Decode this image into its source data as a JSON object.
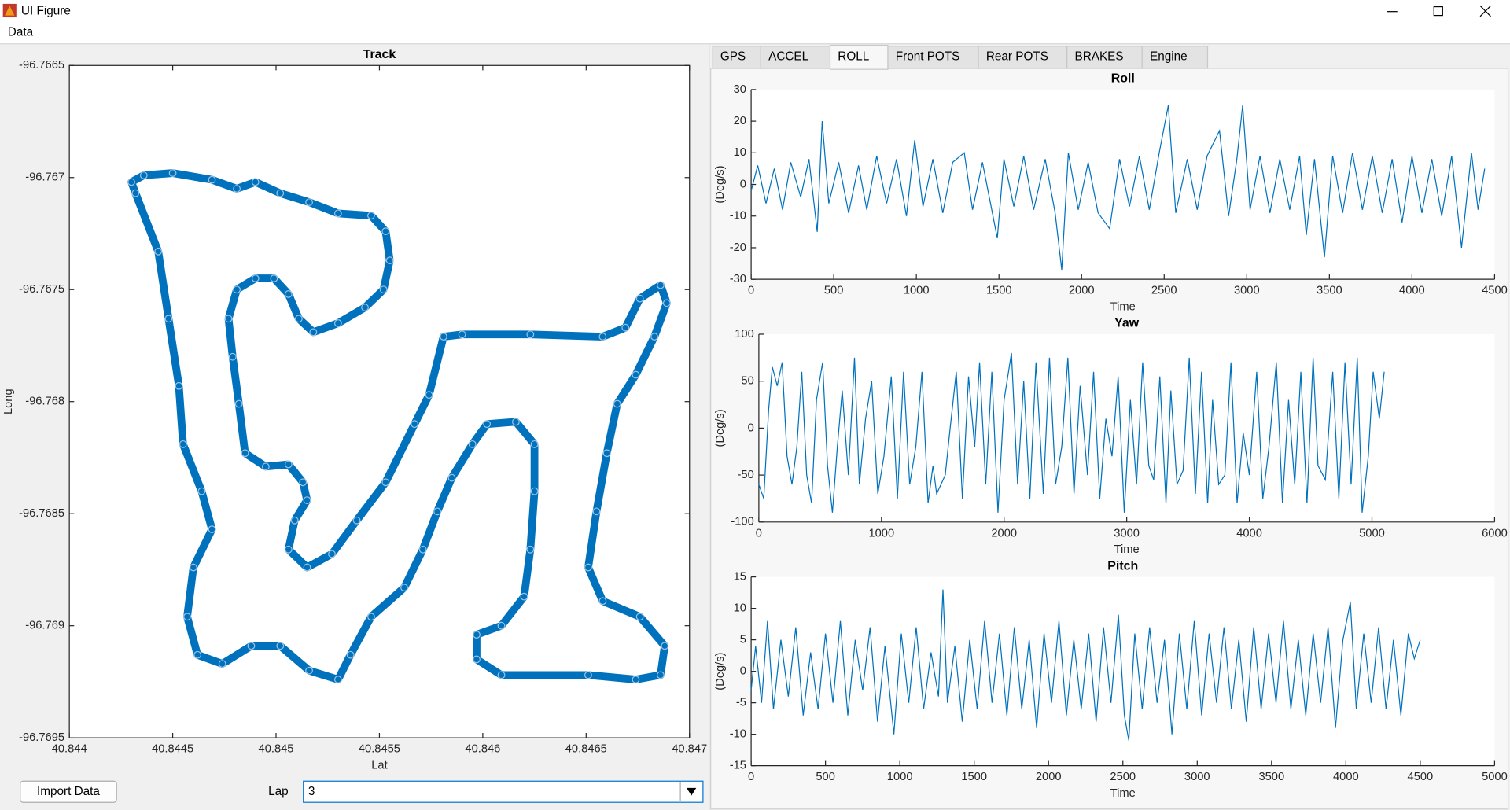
{
  "window": {
    "title": "UI Figure"
  },
  "menu": [
    "Data"
  ],
  "tabs": [
    "GPS",
    "ACCEL",
    "ROLL",
    "Front POTS",
    "Rear POTS",
    "BRAKES",
    "Engine"
  ],
  "active_tab": 2,
  "controls": {
    "button": "Import Data",
    "lap_label": "Lap",
    "lap_value": "3"
  },
  "chart_data": [
    {
      "type": "scatter",
      "title": "Track",
      "x_label": "Lat",
      "y_label": "Long",
      "color": "#0072BD",
      "xlim": [
        40.844,
        40.847
      ],
      "ylim": [
        -96.7695,
        -96.7665
      ],
      "xticks": [
        40.844,
        40.8445,
        40.845,
        40.8455,
        40.846,
        40.8465,
        40.847
      ],
      "yticks": [
        -96.7695,
        -96.769,
        -96.7685,
        -96.768,
        -96.7675,
        -96.767,
        -96.7665
      ],
      "x": [
        40.8443,
        40.84436,
        40.8445,
        40.84469,
        40.84481,
        40.8449,
        40.84502,
        40.84516,
        40.8453,
        40.84546,
        40.84553,
        40.84555,
        40.84552,
        40.84543,
        40.8453,
        40.84518,
        40.84511,
        40.84506,
        40.84499,
        40.8449,
        40.84481,
        40.84477,
        40.84479,
        40.84482,
        40.84485,
        40.84495,
        40.84506,
        40.84513,
        40.84515,
        40.84509,
        40.84506,
        40.84515,
        40.84527,
        40.84539,
        40.84553,
        40.84567,
        40.84574,
        40.84581,
        40.8459,
        40.84623,
        40.84658,
        40.84669,
        40.84676,
        40.84686,
        40.84689,
        40.84683,
        40.84674,
        40.84665,
        40.8466,
        40.84655,
        40.84651,
        40.84658,
        40.84676,
        40.84688,
        40.84686,
        40.84674,
        40.84651,
        40.84609,
        40.84597,
        40.84597,
        40.84609,
        40.8462,
        40.84623,
        40.84625,
        40.84625,
        40.84616,
        40.84602,
        40.84595,
        40.84585,
        40.84578,
        40.84571,
        40.84562,
        40.84546,
        40.84536,
        40.8453,
        40.84516,
        40.84502,
        40.84488,
        40.84474,
        40.84462,
        40.84457,
        40.8446,
        40.84469,
        40.84464,
        40.84455,
        40.84453,
        40.84448,
        40.84443,
        40.84432
      ],
      "values": [
        -96.76702,
        -96.76699,
        -96.76698,
        -96.76701,
        -96.76705,
        -96.76702,
        -96.76707,
        -96.76711,
        -96.76716,
        -96.76717,
        -96.76724,
        -96.76737,
        -96.7675,
        -96.76758,
        -96.76765,
        -96.76769,
        -96.76763,
        -96.76752,
        -96.76745,
        -96.76745,
        -96.7675,
        -96.76763,
        -96.7678,
        -96.76801,
        -96.76823,
        -96.76829,
        -96.76828,
        -96.76836,
        -96.76844,
        -96.76853,
        -96.76866,
        -96.76874,
        -96.76868,
        -96.76853,
        -96.76836,
        -96.7681,
        -96.76797,
        -96.76771,
        -96.7677,
        -96.7677,
        -96.76771,
        -96.76767,
        -96.76754,
        -96.76748,
        -96.76756,
        -96.76771,
        -96.76788,
        -96.76801,
        -96.76823,
        -96.76849,
        -96.76874,
        -96.76889,
        -96.76896,
        -96.76909,
        -96.76922,
        -96.76924,
        -96.76922,
        -96.76922,
        -96.76915,
        -96.76904,
        -96.769,
        -96.76887,
        -96.76866,
        -96.7684,
        -96.76819,
        -96.76809,
        -96.7681,
        -96.76819,
        -96.76834,
        -96.76849,
        -96.76866,
        -96.76883,
        -96.76896,
        -96.76913,
        -96.76924,
        -96.7692,
        -96.76909,
        -96.76909,
        -96.76917,
        -96.76913,
        -96.76896,
        -96.76874,
        -96.76857,
        -96.7684,
        -96.76819,
        -96.76793,
        -96.76763,
        -96.76733,
        -96.76707
      ]
    },
    {
      "type": "line",
      "title": "Roll",
      "x_label": "Time",
      "y_label": "(Deg/s)",
      "color": "#0072BD",
      "xlim": [
        0,
        4500
      ],
      "ylim": [
        -30,
        30
      ],
      "xticks": [
        0,
        500,
        1000,
        1500,
        2000,
        2500,
        3000,
        3500,
        4000,
        4500
      ],
      "yticks": [
        -30,
        -20,
        -10,
        0,
        10,
        20,
        30
      ],
      "x": [
        0,
        40,
        90,
        140,
        190,
        240,
        300,
        350,
        400,
        430,
        470,
        530,
        590,
        650,
        700,
        760,
        820,
        880,
        940,
        990,
        1040,
        1100,
        1160,
        1220,
        1290,
        1340,
        1400,
        1460,
        1490,
        1530,
        1590,
        1650,
        1710,
        1780,
        1840,
        1880,
        1920,
        1980,
        2040,
        2100,
        2170,
        2230,
        2290,
        2350,
        2410,
        2470,
        2525,
        2570,
        2640,
        2700,
        2760,
        2835,
        2890,
        2940,
        2975,
        3020,
        3080,
        3140,
        3200,
        3260,
        3320,
        3360,
        3410,
        3470,
        3520,
        3580,
        3640,
        3700,
        3760,
        3820,
        3880,
        3940,
        4000,
        4060,
        4120,
        4180,
        4240,
        4300,
        4360,
        4400,
        4440
      ],
      "values": [
        -2,
        6,
        -6,
        5,
        -8,
        7,
        -4,
        8,
        -15,
        20,
        -6,
        7,
        -9,
        6,
        -8,
        9,
        -6,
        8,
        -10,
        14,
        -7,
        8,
        -9,
        7,
        10,
        -8,
        7,
        -9,
        -17,
        8,
        -7,
        9,
        -8,
        8,
        -9,
        -27,
        10,
        -8,
        7,
        -9,
        -14,
        8,
        -7,
        9,
        -8,
        10,
        25,
        -9,
        8,
        -8,
        9,
        17,
        -10,
        8,
        25,
        -8,
        9,
        -9,
        8,
        -8,
        9,
        -16,
        8,
        -23,
        9,
        -9,
        10,
        -8,
        9,
        -9,
        8,
        -12,
        9,
        -9,
        8,
        -10,
        9,
        -20,
        10,
        -8,
        5
      ]
    },
    {
      "type": "line",
      "title": "Yaw",
      "x_label": "Time",
      "y_label": "(Deg/s)",
      "color": "#0072BD",
      "xlim": [
        0,
        6000
      ],
      "ylim": [
        -100,
        100
      ],
      "xticks": [
        0,
        1000,
        2000,
        3000,
        4000,
        5000,
        6000
      ],
      "yticks": [
        -100,
        -50,
        0,
        50,
        100
      ],
      "x": [
        0,
        40,
        80,
        110,
        150,
        190,
        230,
        270,
        310,
        350,
        390,
        430,
        470,
        520,
        560,
        600,
        640,
        680,
        730,
        780,
        820,
        870,
        920,
        970,
        1020,
        1080,
        1130,
        1180,
        1230,
        1280,
        1330,
        1380,
        1420,
        1450,
        1520,
        1560,
        1610,
        1660,
        1710,
        1760,
        1800,
        1850,
        1900,
        1950,
        2000,
        2060,
        2110,
        2160,
        2210,
        2260,
        2320,
        2370,
        2420,
        2470,
        2520,
        2570,
        2620,
        2680,
        2730,
        2780,
        2830,
        2880,
        2930,
        2980,
        3030,
        3080,
        3130,
        3180,
        3220,
        3270,
        3320,
        3360,
        3410,
        3460,
        3510,
        3560,
        3610,
        3660,
        3700,
        3750,
        3800,
        3850,
        3900,
        3950,
        4000,
        4060,
        4110,
        4160,
        4220,
        4270,
        4320,
        4370,
        4420,
        4470,
        4520,
        4560,
        4620,
        4680,
        4730,
        4780,
        4830,
        4880,
        4920,
        4970,
        5010,
        5060,
        5100
      ],
      "values": [
        -60,
        -75,
        20,
        65,
        45,
        70,
        -30,
        -60,
        -20,
        60,
        -50,
        -80,
        30,
        70,
        -40,
        -90,
        -20,
        40,
        -50,
        75,
        -60,
        10,
        50,
        -70,
        -30,
        55,
        -75,
        60,
        -60,
        -20,
        60,
        -80,
        -40,
        -70,
        -50,
        0,
        60,
        -75,
        55,
        -20,
        70,
        -60,
        60,
        -90,
        30,
        80,
        -60,
        50,
        -75,
        70,
        -70,
        75,
        -60,
        -20,
        75,
        -70,
        45,
        -50,
        60,
        -75,
        10,
        -30,
        55,
        -90,
        30,
        -60,
        70,
        -40,
        -55,
        55,
        -80,
        40,
        -60,
        -45,
        75,
        -70,
        60,
        -80,
        30,
        -60,
        -50,
        70,
        -80,
        -5,
        -50,
        60,
        -75,
        -20,
        70,
        -80,
        30,
        -60,
        60,
        -80,
        75,
        -40,
        -55,
        60,
        -75,
        70,
        -60,
        75,
        -90,
        -30,
        60,
        10,
        60
      ]
    },
    {
      "type": "line",
      "title": "Pitch",
      "x_label": "Time",
      "y_label": "(Deg/s)",
      "color": "#0072BD",
      "xlim": [
        0,
        5000
      ],
      "ylim": [
        -15,
        15
      ],
      "xticks": [
        0,
        500,
        1000,
        1500,
        2000,
        2500,
        3000,
        3500,
        4000,
        4500,
        5000
      ],
      "yticks": [
        -15,
        -10,
        -5,
        0,
        5,
        10,
        15
      ],
      "x": [
        0,
        30,
        70,
        110,
        150,
        200,
        250,
        300,
        350,
        400,
        450,
        500,
        550,
        600,
        650,
        700,
        750,
        800,
        850,
        900,
        960,
        1010,
        1060,
        1110,
        1160,
        1210,
        1260,
        1290,
        1320,
        1370,
        1420,
        1470,
        1520,
        1570,
        1620,
        1670,
        1720,
        1770,
        1820,
        1870,
        1920,
        1970,
        2020,
        2070,
        2120,
        2170,
        2220,
        2270,
        2320,
        2370,
        2420,
        2470,
        2510,
        2540,
        2580,
        2630,
        2680,
        2730,
        2780,
        2830,
        2880,
        2930,
        2980,
        3030,
        3080,
        3130,
        3180,
        3230,
        3280,
        3330,
        3380,
        3430,
        3480,
        3530,
        3580,
        3630,
        3680,
        3730,
        3780,
        3830,
        3880,
        3930,
        3980,
        4030,
        4070,
        4120,
        4170,
        4220,
        4270,
        4320,
        4370,
        4420,
        4460,
        4500
      ],
      "values": [
        -3,
        4,
        -5,
        8,
        -6,
        5,
        -4,
        7,
        -7,
        3,
        -6,
        6,
        -5,
        8,
        -7,
        5,
        -3,
        7,
        -8,
        4,
        -10,
        6,
        -5,
        7,
        -6,
        3,
        -4,
        13,
        -5,
        4,
        -8,
        5,
        -6,
        8,
        -5,
        6,
        -7,
        7,
        -6,
        5,
        -9,
        6,
        -5,
        8,
        -7,
        5,
        -6,
        6,
        -8,
        7,
        -5,
        9,
        -7,
        -11,
        6,
        -6,
        7,
        -5,
        5,
        -10,
        6,
        -6,
        8,
        -7,
        6,
        -5,
        7,
        -6,
        5,
        -8,
        7,
        -6,
        6,
        -5,
        8,
        -6,
        5,
        -7,
        6,
        -5,
        7,
        -9,
        5,
        11,
        -6,
        6,
        -5,
        7,
        -6,
        5,
        -7,
        6,
        2,
        5
      ]
    }
  ]
}
